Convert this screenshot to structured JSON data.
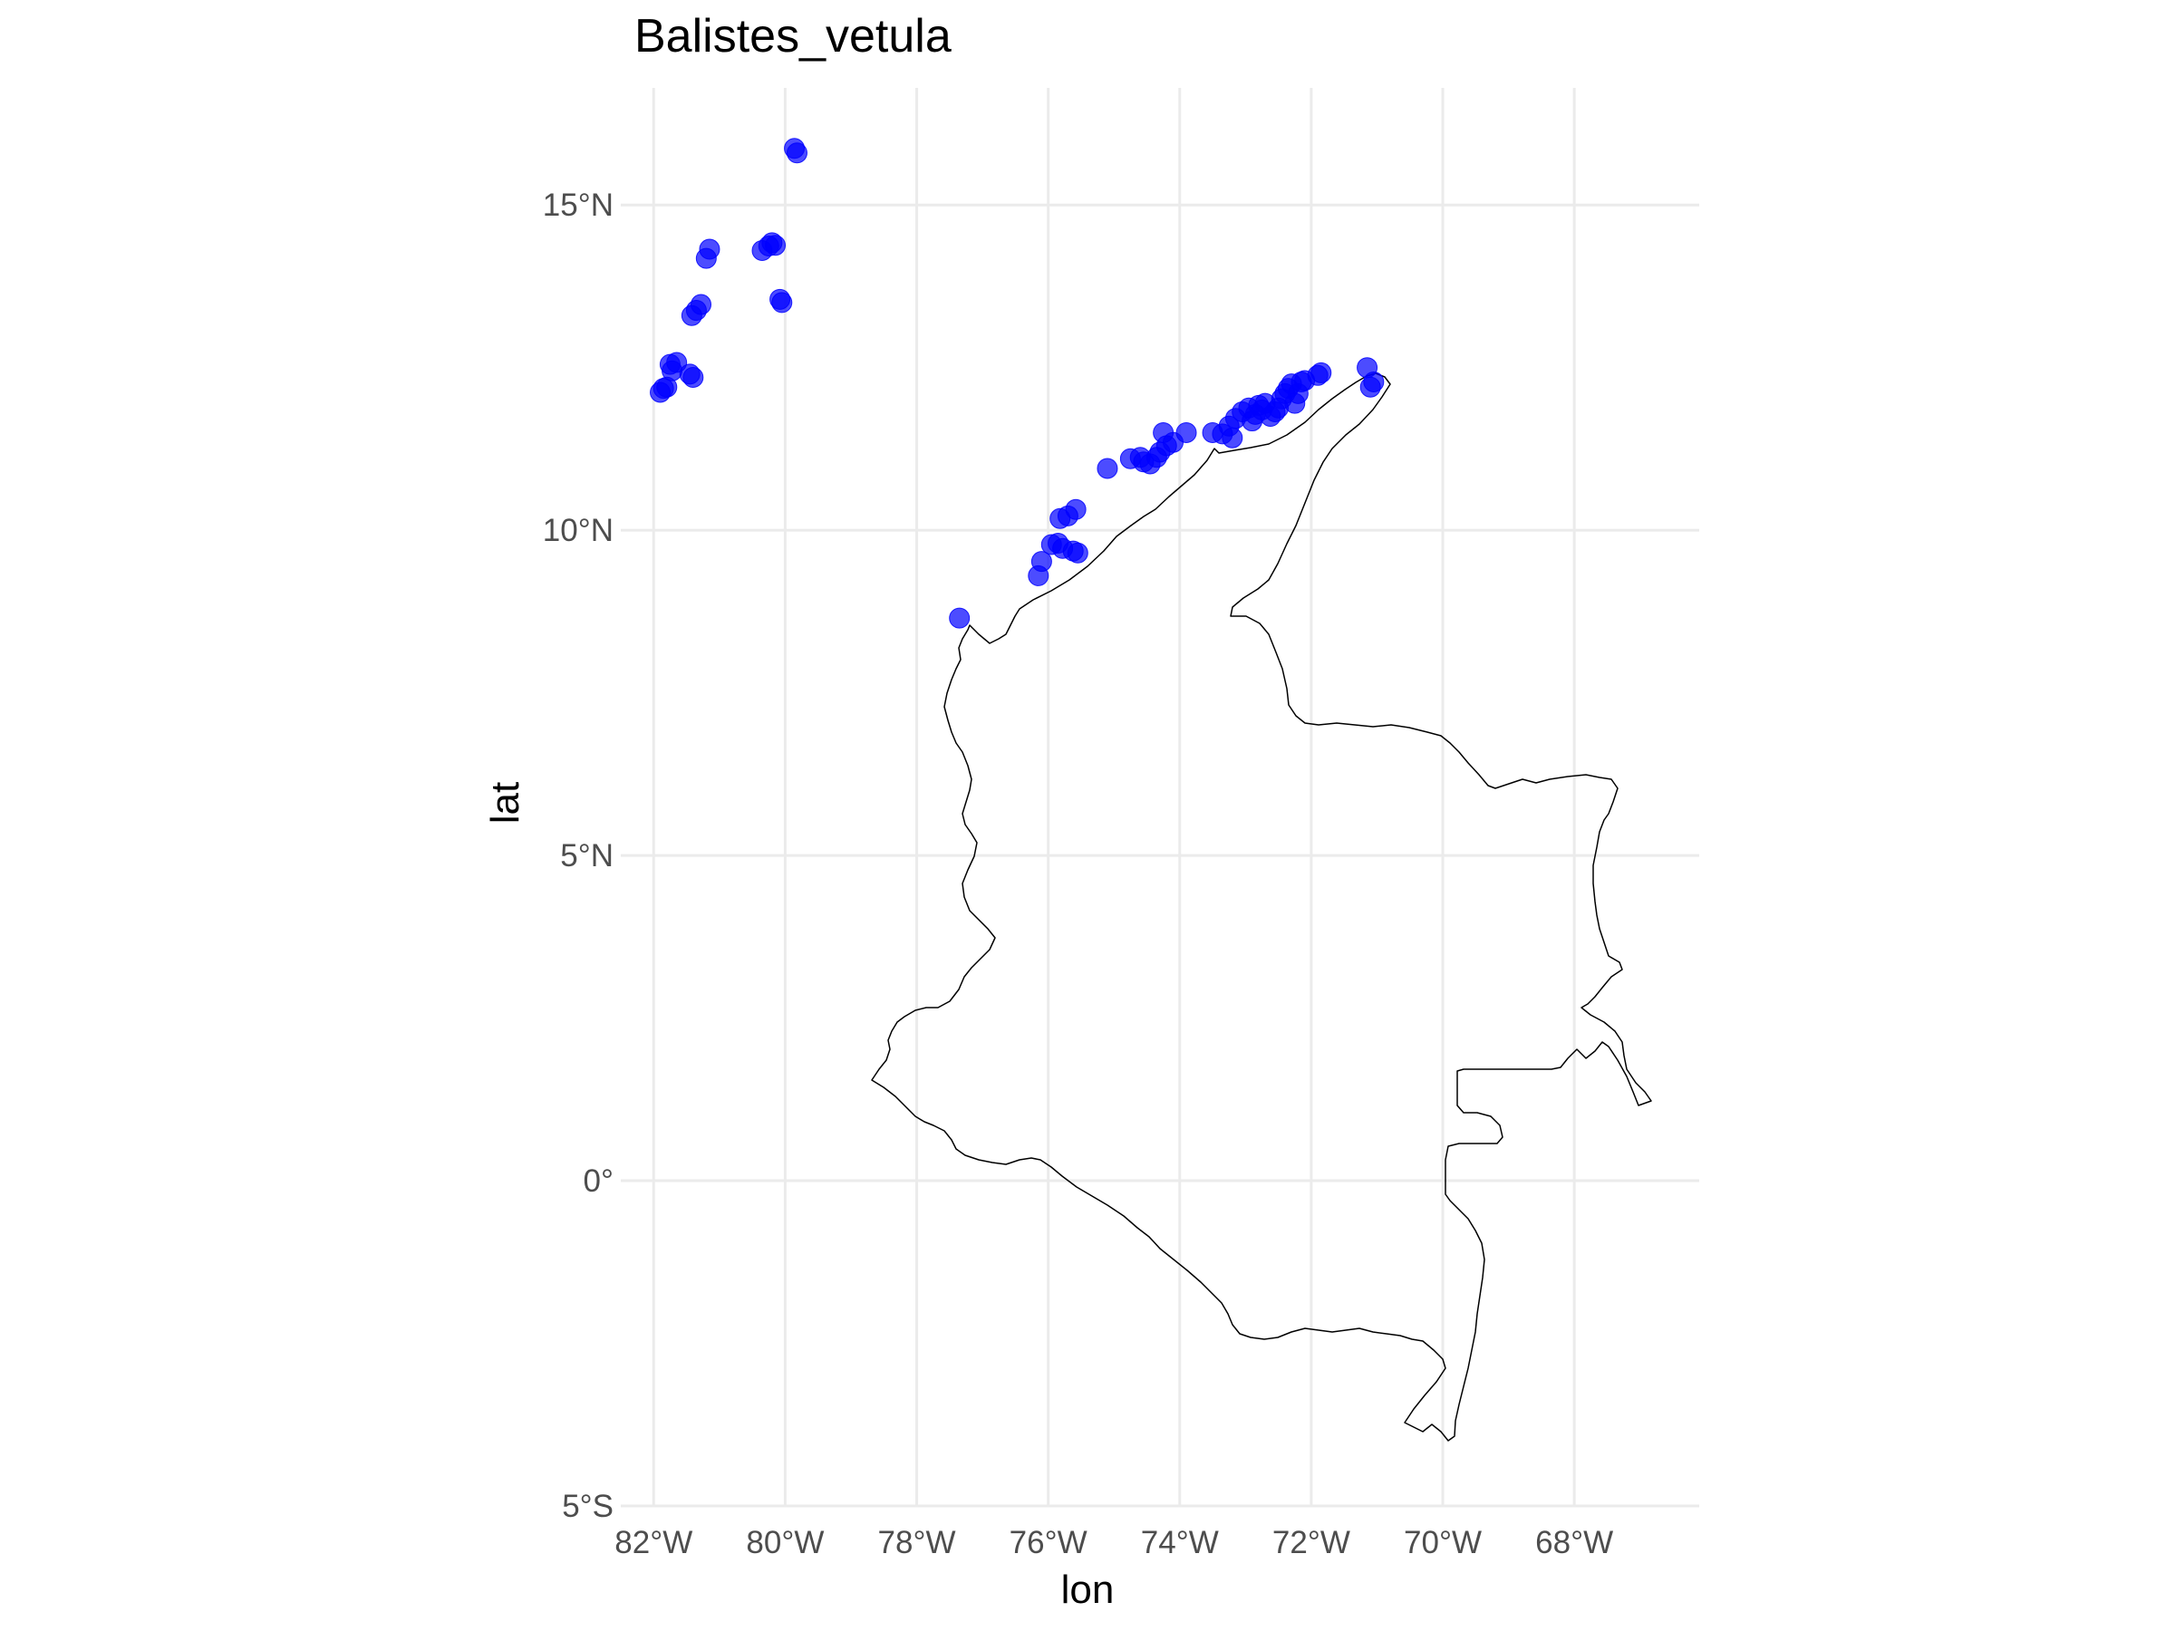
{
  "chart_data": {
    "type": "scatter",
    "title": "Balistes_vetula",
    "xlabel": "lon",
    "ylabel": "lat",
    "xlim": [
      -82.5,
      -66.1
    ],
    "ylim": [
      -5,
      16.8
    ],
    "x_ticks": [
      {
        "value": -82,
        "label": "82°W"
      },
      {
        "value": -80,
        "label": "80°W"
      },
      {
        "value": -78,
        "label": "78°W"
      },
      {
        "value": -76,
        "label": "76°W"
      },
      {
        "value": -74,
        "label": "74°W"
      },
      {
        "value": -72,
        "label": "72°W"
      },
      {
        "value": -70,
        "label": "70°W"
      },
      {
        "value": -68,
        "label": "68°W"
      }
    ],
    "y_ticks": [
      {
        "value": 15,
        "label": "15°N"
      },
      {
        "value": 10,
        "label": "10°N"
      },
      {
        "value": 5,
        "label": "5°N"
      },
      {
        "value": 0,
        "label": "0°"
      },
      {
        "value": -5,
        "label": "5°S"
      }
    ],
    "grid": true,
    "legend": "none",
    "point_color": "#0000ff",
    "border_color": "#000000",
    "series": [
      {
        "points": [
          [
            -79.86,
            15.87
          ],
          [
            -79.82,
            15.8
          ],
          [
            -81.2,
            14.18
          ],
          [
            -81.15,
            14.32
          ],
          [
            -80.35,
            14.3
          ],
          [
            -80.25,
            14.37
          ],
          [
            -80.2,
            14.42
          ],
          [
            -80.15,
            14.38
          ],
          [
            -80.08,
            13.55
          ],
          [
            -80.05,
            13.5
          ],
          [
            -81.42,
            13.3
          ],
          [
            -81.35,
            13.38
          ],
          [
            -81.28,
            13.47
          ],
          [
            -81.75,
            12.55
          ],
          [
            -81.65,
            12.58
          ],
          [
            -81.72,
            12.45
          ],
          [
            -81.45,
            12.4
          ],
          [
            -81.4,
            12.35
          ],
          [
            -81.9,
            12.12
          ],
          [
            -81.85,
            12.18
          ],
          [
            -81.8,
            12.2
          ],
          [
            -77.35,
            8.65
          ],
          [
            -76.15,
            9.3
          ],
          [
            -76.1,
            9.52
          ],
          [
            -75.95,
            9.78
          ],
          [
            -75.85,
            9.8
          ],
          [
            -75.78,
            9.72
          ],
          [
            -75.82,
            10.18
          ],
          [
            -75.7,
            10.22
          ],
          [
            -75.58,
            10.32
          ],
          [
            -75.62,
            9.68
          ],
          [
            -75.55,
            9.65
          ],
          [
            -75.1,
            10.95
          ],
          [
            -74.75,
            11.1
          ],
          [
            -74.6,
            11.12
          ],
          [
            -74.55,
            11.05
          ],
          [
            -74.45,
            11.02
          ],
          [
            -74.35,
            11.12
          ],
          [
            -74.3,
            11.2
          ],
          [
            -74.2,
            11.3
          ],
          [
            -74.1,
            11.35
          ],
          [
            -74.25,
            11.5
          ],
          [
            -73.9,
            11.5
          ],
          [
            -73.5,
            11.5
          ],
          [
            -73.35,
            11.48
          ],
          [
            -73.25,
            11.6
          ],
          [
            -73.2,
            11.42
          ],
          [
            -73.15,
            11.72
          ],
          [
            -73.05,
            11.82
          ],
          [
            -72.95,
            11.88
          ],
          [
            -72.9,
            11.68
          ],
          [
            -72.85,
            11.78
          ],
          [
            -72.8,
            11.92
          ],
          [
            -72.75,
            11.85
          ],
          [
            -72.7,
            11.95
          ],
          [
            -72.62,
            11.75
          ],
          [
            -72.55,
            11.82
          ],
          [
            -72.5,
            11.88
          ],
          [
            -72.45,
            12.02
          ],
          [
            -72.4,
            12.1
          ],
          [
            -72.35,
            12.18
          ],
          [
            -72.3,
            12.25
          ],
          [
            -72.25,
            11.95
          ],
          [
            -72.2,
            12.1
          ],
          [
            -72.15,
            12.28
          ],
          [
            -72.1,
            12.3
          ],
          [
            -71.9,
            12.38
          ],
          [
            -71.85,
            12.42
          ],
          [
            -71.15,
            12.5
          ],
          [
            -71.1,
            12.2
          ],
          [
            -71.05,
            12.28
          ]
        ]
      }
    ]
  }
}
